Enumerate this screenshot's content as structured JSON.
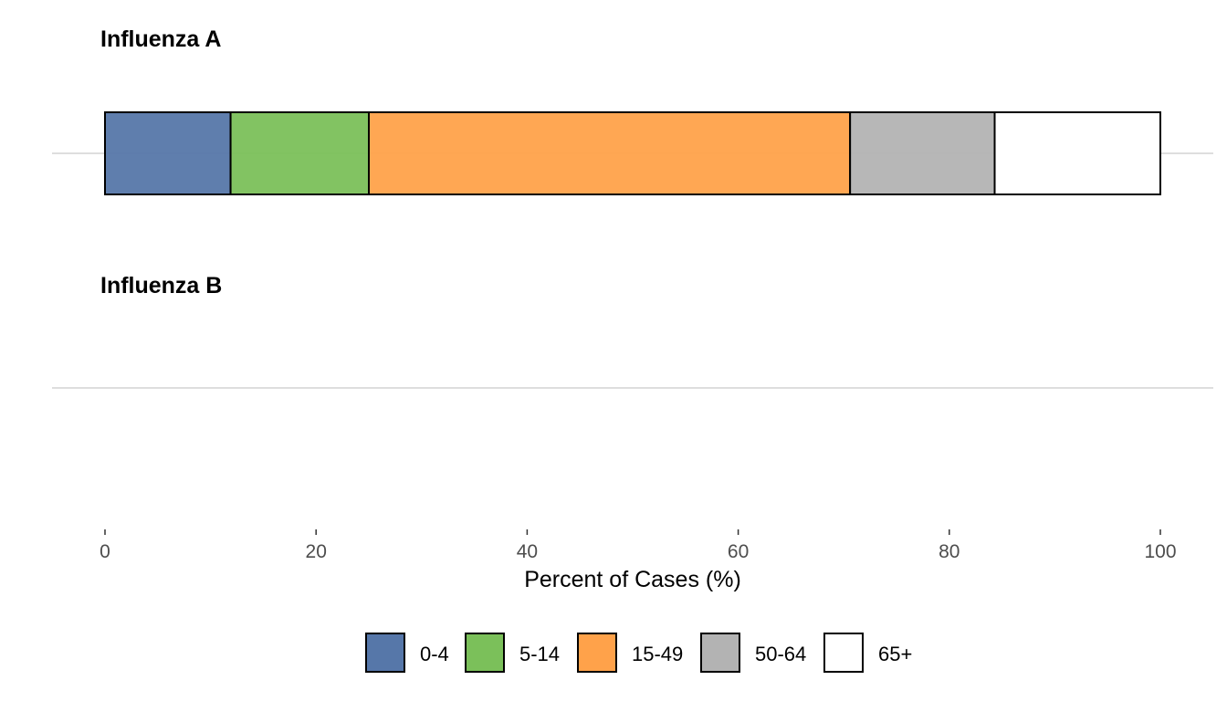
{
  "chart_data": {
    "type": "bar",
    "orientation": "horizontal",
    "stacked": true,
    "panels": [
      {
        "title": "Influenza A",
        "segments": [
          {
            "group": "0-4",
            "value": 11.9
          },
          {
            "group": "5-14",
            "value": 13.1
          },
          {
            "group": "15-49",
            "value": 45.6
          },
          {
            "group": "50-64",
            "value": 13.7
          },
          {
            "group": "65+",
            "value": 15.7
          }
        ]
      },
      {
        "title": "Influenza B",
        "segments": []
      }
    ],
    "groups": [
      "0-4",
      "5-14",
      "15-49",
      "50-64",
      "65+"
    ],
    "colors": {
      "0-4": "#5677a9",
      "5-14": "#7bc05a",
      "15-49": "#ffa24a",
      "50-64": "#b3b3b3",
      "65+": "#ffffff"
    },
    "xlabel": "Percent of Cases (%)",
    "ylabel": "",
    "xlim": [
      0,
      100
    ],
    "xticks": [
      0,
      20,
      40,
      60,
      80,
      100
    ],
    "grid": "major y only",
    "legend_position": "bottom"
  }
}
